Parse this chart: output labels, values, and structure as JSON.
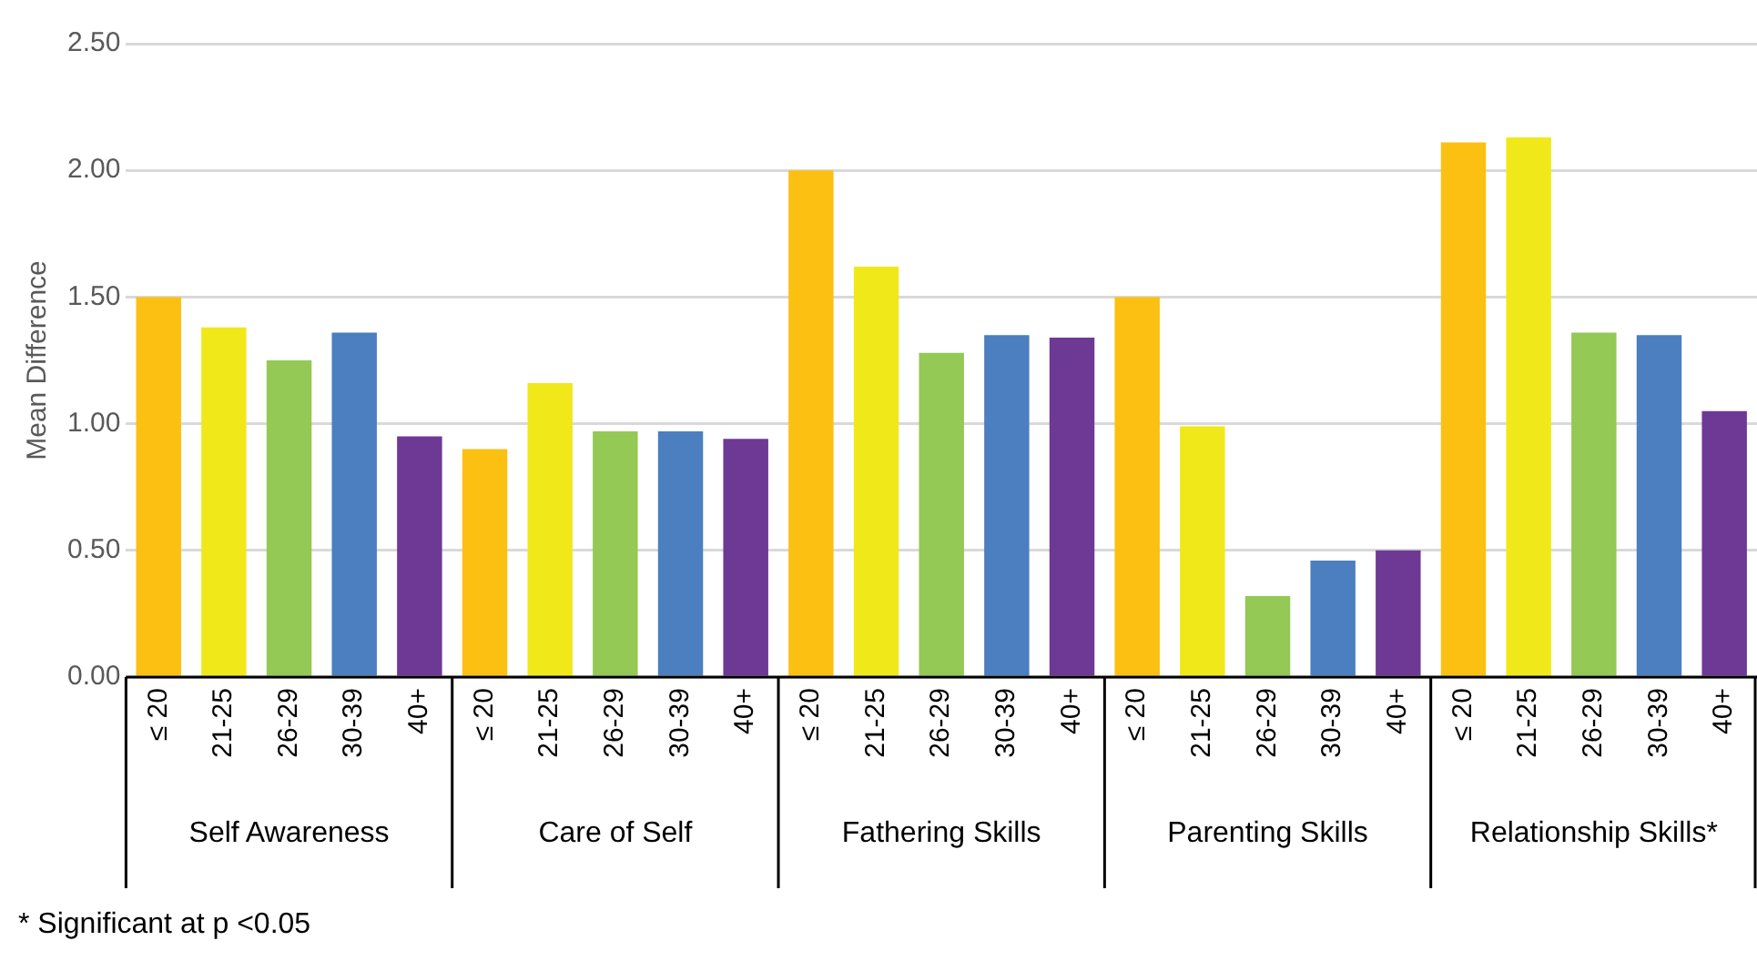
{
  "chart_data": {
    "type": "bar",
    "ylabel": "Mean Difference",
    "categories": [
      "Self Awareness",
      "Care of Self",
      "Fathering Skills",
      "Parenting Skills",
      "Relationship Skills*"
    ],
    "series": [
      {
        "name": "≤ 20",
        "color": "#fbc012",
        "values": [
          1.5,
          0.9,
          2.0,
          1.5,
          2.11
        ]
      },
      {
        "name": "21-25",
        "color": "#f1e81a",
        "values": [
          1.38,
          1.16,
          1.62,
          0.99,
          2.13
        ]
      },
      {
        "name": "26-29",
        "color": "#93c954",
        "values": [
          1.25,
          0.97,
          1.28,
          0.32,
          1.36
        ]
      },
      {
        "name": "30-39",
        "color": "#4b7fbf",
        "values": [
          1.36,
          0.97,
          1.35,
          0.46,
          1.35
        ]
      },
      {
        "name": "40+",
        "color": "#6e3994",
        "values": [
          0.95,
          0.94,
          1.34,
          0.5,
          1.05
        ]
      }
    ],
    "ylim": [
      0,
      2.5
    ],
    "yticks": [
      {
        "value": 0,
        "label": "0.00"
      },
      {
        "value": 0.5,
        "label": "0.50"
      },
      {
        "value": 1,
        "label": "1.00"
      },
      {
        "value": 1.5,
        "label": "1.50"
      },
      {
        "value": 2,
        "label": "2.00"
      },
      {
        "value": 2.5,
        "label": "2.50"
      }
    ],
    "grid": "y",
    "legend": false,
    "annotations": [
      "* Significant at p <0.05"
    ]
  }
}
